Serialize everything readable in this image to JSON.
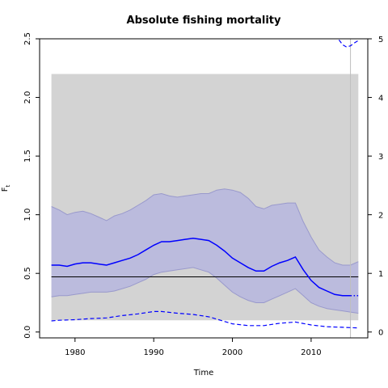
{
  "chart_data": {
    "type": "line",
    "title": "Absolute fishing mortality",
    "xlabel": "Time",
    "ylabel": "F",
    "ylabel_subscript": "t",
    "xlim": [
      1975.5,
      2017.2
    ],
    "ylim": [
      -0.05,
      2.5
    ],
    "y2lim": [
      -0.1,
      5.0
    ],
    "xticks": [
      1980,
      1990,
      2000,
      2010
    ],
    "yticks": [
      0.0,
      0.5,
      1.0,
      1.5,
      2.0,
      2.5
    ],
    "y2ticks": [
      0,
      1,
      2,
      3,
      4,
      5
    ],
    "grid": false,
    "colors": {
      "band": "#d3d3d3",
      "ci": "#bbbbdd",
      "ci_edge": "#9999cc",
      "line": "#0000ff",
      "reference": "#000000",
      "vline": "#bebebe"
    },
    "background_band": {
      "x": [
        1977,
        2016
      ],
      "y": [
        0.1,
        2.2
      ]
    },
    "reference_line": {
      "y": 0.47
    },
    "vertical_line": {
      "x": 2015
    },
    "series": [
      {
        "role": "median",
        "style": "solid",
        "x": [
          1977,
          1978,
          1979,
          1980,
          1981,
          1982,
          1983,
          1984,
          1985,
          1986,
          1987,
          1988,
          1989,
          1990,
          1991,
          1992,
          1993,
          1994,
          1995,
          1996,
          1997,
          1998,
          1999,
          2000,
          2001,
          2002,
          2003,
          2004,
          2005,
          2006,
          2007,
          2008,
          2009,
          2010,
          2011,
          2012,
          2013,
          2014,
          2015
        ],
        "values": [
          0.57,
          0.57,
          0.56,
          0.58,
          0.59,
          0.59,
          0.58,
          0.57,
          0.59,
          0.61,
          0.63,
          0.66,
          0.7,
          0.74,
          0.77,
          0.77,
          0.78,
          0.79,
          0.8,
          0.79,
          0.78,
          0.74,
          0.69,
          0.63,
          0.59,
          0.55,
          0.52,
          0.52,
          0.56,
          0.59,
          0.61,
          0.64,
          0.53,
          0.44,
          0.38,
          0.35,
          0.32,
          0.31,
          0.31
        ]
      },
      {
        "role": "forecast",
        "style": "dotted",
        "x": [
          2015,
          2016
        ],
        "values": [
          0.31,
          0.31
        ]
      },
      {
        "role": "upper",
        "x": [
          1977,
          1978,
          1979,
          1980,
          1981,
          1982,
          1983,
          1984,
          1985,
          1986,
          1987,
          1988,
          1989,
          1990,
          1991,
          1992,
          1993,
          1994,
          1995,
          1996,
          1997,
          1998,
          1999,
          2000,
          2001,
          2002,
          2003,
          2004,
          2005,
          2006,
          2007,
          2008,
          2009,
          2010,
          2011,
          2012,
          2013,
          2014,
          2015,
          2016
        ],
        "values": [
          1.07,
          1.04,
          1.0,
          1.02,
          1.03,
          1.01,
          0.98,
          0.95,
          0.99,
          1.01,
          1.04,
          1.08,
          1.12,
          1.17,
          1.18,
          1.16,
          1.15,
          1.16,
          1.17,
          1.18,
          1.18,
          1.21,
          1.22,
          1.21,
          1.19,
          1.14,
          1.07,
          1.05,
          1.08,
          1.09,
          1.1,
          1.1,
          0.94,
          0.81,
          0.7,
          0.64,
          0.59,
          0.57,
          0.57,
          0.6
        ]
      },
      {
        "role": "lower",
        "x": [
          1977,
          1978,
          1979,
          1980,
          1981,
          1982,
          1983,
          1984,
          1985,
          1986,
          1987,
          1988,
          1989,
          1990,
          1991,
          1992,
          1993,
          1994,
          1995,
          1996,
          1997,
          1998,
          1999,
          2000,
          2001,
          2002,
          2003,
          2004,
          2005,
          2006,
          2007,
          2008,
          2009,
          2010,
          2011,
          2012,
          2013,
          2014,
          2015,
          2016
        ],
        "values": [
          0.3,
          0.31,
          0.31,
          0.32,
          0.33,
          0.34,
          0.34,
          0.34,
          0.35,
          0.37,
          0.39,
          0.42,
          0.45,
          0.49,
          0.51,
          0.52,
          0.53,
          0.54,
          0.55,
          0.53,
          0.51,
          0.46,
          0.4,
          0.34,
          0.3,
          0.27,
          0.25,
          0.25,
          0.28,
          0.31,
          0.34,
          0.37,
          0.31,
          0.25,
          0.22,
          0.2,
          0.19,
          0.18,
          0.17,
          0.16
        ]
      },
      {
        "role": "secondary_axis_dashed_lower",
        "axis": "right",
        "style": "dashed",
        "x": [
          1977,
          1978,
          1980,
          1982,
          1984,
          1986,
          1988,
          1990,
          1991,
          1993,
          1995,
          1997,
          1998,
          2000,
          2002,
          2004,
          2006,
          2008,
          2010,
          2012,
          2014,
          2016
        ],
        "values": [
          0.19,
          0.2,
          0.21,
          0.23,
          0.24,
          0.28,
          0.31,
          0.35,
          0.35,
          0.32,
          0.3,
          0.26,
          0.22,
          0.14,
          0.11,
          0.11,
          0.15,
          0.17,
          0.12,
          0.09,
          0.08,
          0.07
        ]
      },
      {
        "role": "secondary_axis_dashed_upper",
        "axis": "right",
        "style": "dashed",
        "x": [
          2012,
          2012.5,
          2013,
          2014,
          2014.5,
          2015,
          2015.5,
          2016
        ],
        "values": [
          5.6,
          5.25,
          5.08,
          4.9,
          4.86,
          4.88,
          4.93,
          4.97
        ]
      }
    ]
  }
}
